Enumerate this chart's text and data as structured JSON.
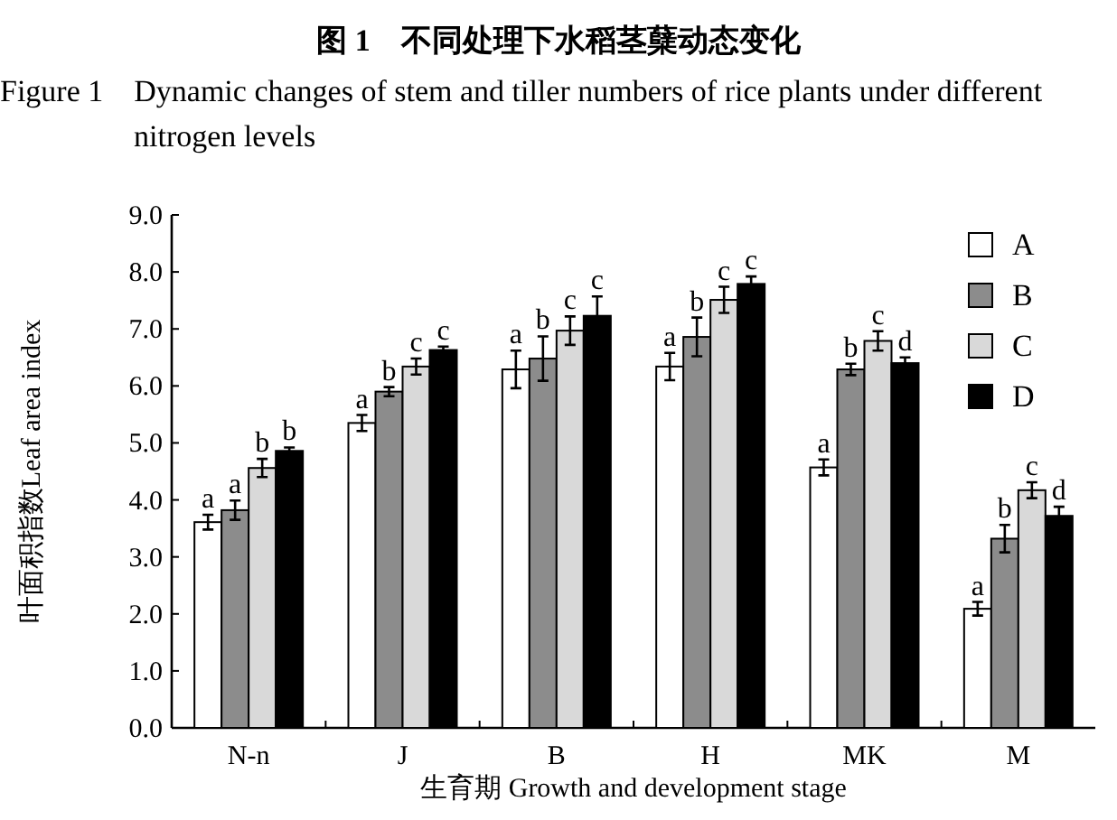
{
  "chart_data": {
    "type": "bar",
    "title": "图 1　不同处理下水稻茎蘖动态变化",
    "subtitle": "Figure 1　Dynamic changes of stem and tiller numbers of rice plants under different nitrogen levels",
    "xlabel": "生育期 Growth and development stage",
    "ylabel": "叶面积指数Leaf area index",
    "categories": [
      "N-n",
      "J",
      "B",
      "H",
      "MK",
      "M"
    ],
    "series": [
      {
        "name": "A",
        "color": "#ffffff",
        "values": [
          3.61,
          5.35,
          6.29,
          6.34,
          4.57,
          2.09
        ],
        "errors": [
          0.13,
          0.14,
          0.33,
          0.24,
          0.14,
          0.12
        ],
        "value_labels": [
          "a",
          "a",
          "a",
          "a",
          "a",
          "a"
        ]
      },
      {
        "name": "B",
        "color": "#8c8c8c",
        "values": [
          3.82,
          5.9,
          6.48,
          6.86,
          6.29,
          3.32
        ],
        "errors": [
          0.17,
          0.08,
          0.39,
          0.34,
          0.1,
          0.24
        ],
        "value_labels": [
          "a",
          "b",
          "b",
          "b",
          "b",
          "b"
        ]
      },
      {
        "name": "C",
        "color": "#d9d9d9",
        "values": [
          4.56,
          6.34,
          6.97,
          7.51,
          6.79,
          4.17
        ],
        "errors": [
          0.16,
          0.14,
          0.25,
          0.23,
          0.17,
          0.14
        ],
        "value_labels": [
          "b",
          "c",
          "c",
          "c",
          "c",
          "c"
        ]
      },
      {
        "name": "D",
        "color": "#000000",
        "values": [
          4.86,
          6.63,
          7.23,
          7.79,
          6.4,
          3.72
        ],
        "errors": [
          0.06,
          0.06,
          0.34,
          0.13,
          0.1,
          0.16
        ],
        "value_labels": [
          "b",
          "c",
          "c",
          "c",
          "d",
          "d"
        ]
      }
    ],
    "ylim": [
      0,
      9
    ],
    "yticks": [
      {
        "value": 0,
        "label": "0.0"
      },
      {
        "value": 1,
        "label": "1.0"
      },
      {
        "value": 2,
        "label": "2.0"
      },
      {
        "value": 3,
        "label": "3.0"
      },
      {
        "value": 4,
        "label": "4.0"
      },
      {
        "value": 5,
        "label": "5.0"
      },
      {
        "value": 6,
        "label": "6.0"
      },
      {
        "value": 7,
        "label": "7.0"
      },
      {
        "value": 8,
        "label": "8.0"
      },
      {
        "value": 9,
        "label": "9.0"
      }
    ],
    "legend": "top right",
    "grid": false
  }
}
